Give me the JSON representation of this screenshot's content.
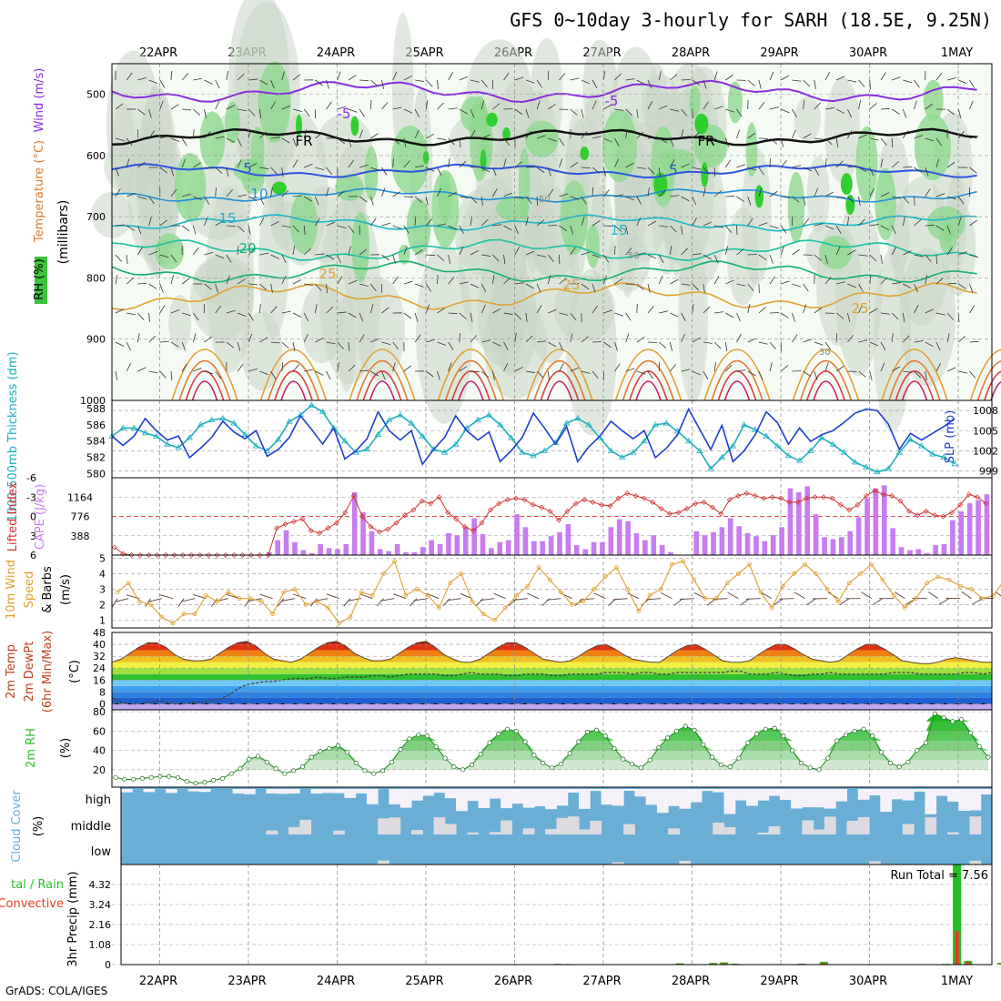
{
  "title": "GFS 0~10day 3-hourly for SARH (18.5E, 9.25N)",
  "credit": "GrADS: COLA/IGES",
  "dates": [
    "22APR",
    "23APR",
    "24APR",
    "25APR",
    "26APR",
    "27APR",
    "28APR",
    "29APR",
    "30APR",
    "1MAY"
  ],
  "colors": {
    "rh_green": "#3cc43c",
    "temp_purple": "#8a2be2",
    "slp_blue": "#1f3fcf",
    "thick_cyan": "#1bb0c0",
    "cape_purple": "#c87cf0",
    "li_red": "#d03030",
    "wind_orange": "#e0a030",
    "rh2m_green": "#2ec02e",
    "cloud_blue": "#6aaed6",
    "cloud_white": "#f4f2f8",
    "precip_green": "#22c022",
    "precip_red": "#e04020"
  },
  "chart_data": [
    {
      "type": "heatmap",
      "name": "upper-air-cross-section",
      "ylabel": "(millibars)",
      "left_labels": [
        "RH (%)",
        "Temperature (°C)",
        "Wind (m/s)"
      ],
      "yticks": [
        500,
        600,
        700,
        800,
        900,
        1000
      ],
      "ylim": [
        450,
        1000
      ],
      "isotherm_labels": [
        "-5",
        "-5",
        "FR",
        "FR",
        "5",
        "5",
        "10",
        "15",
        "15",
        "20",
        "25",
        "25",
        "25"
      ],
      "rh_labels": [
        "50",
        "50",
        "30"
      ]
    },
    {
      "type": "line",
      "name": "slp-thickness",
      "left_label": "1000-500mb Thickness (dm)",
      "right_label": "SLP (mb)",
      "left_ticks": [
        580,
        582,
        584,
        586,
        588
      ],
      "right_ticks": [
        999,
        1002,
        1005,
        1008
      ],
      "series": [
        {
          "name": "SLP (mb)",
          "axis": "right",
          "ylim": [
            998,
            1009.5
          ],
          "values": [
            1004.2,
            1002.8,
            1004.2,
            1006.8,
            1005.0,
            1003.6,
            1004.2,
            1001.0,
            1002.4,
            1004.0,
            1006.4,
            1004.8,
            1003.8,
            1005.0,
            1001.2,
            1002.2,
            1004.0,
            1007.2,
            1005.2,
            1003.0,
            1005.4,
            1000.8,
            1002.0,
            1003.8,
            1007.8,
            1005.0,
            1003.6,
            1005.0,
            1000.0,
            1002.2,
            1004.0,
            1007.2,
            1005.0,
            1003.6,
            1004.8,
            1000.4,
            1002.0,
            1004.0,
            1007.6,
            1005.4,
            1003.0,
            1005.6,
            1000.4,
            1002.6,
            1004.2,
            1006.4,
            1005.0,
            1003.8,
            1005.0,
            1001.0,
            1002.4,
            1004.4,
            1008.2,
            1005.2,
            1002.2,
            1005.8,
            1000.4,
            1002.0,
            1004.4,
            1007.8,
            1006.2,
            1003.0,
            1005.4,
            1003.4,
            1004.4,
            1005.0,
            1006.2,
            1007.6,
            1008.2,
            1008.0,
            1006.0,
            1002.2,
            1004.6,
            1003.6,
            1004.6,
            1005.6,
            1006.8
          ]
        },
        {
          "name": "Thickness (dm)",
          "axis": "left",
          "ylim": [
            579.5,
            589
          ],
          "values": [
            584.6,
            585.6,
            585.6,
            585.0,
            584.6,
            583.6,
            583.2,
            584.4,
            586.0,
            586.6,
            586.8,
            586.2,
            584.8,
            583.4,
            582.8,
            584.2,
            586.4,
            587.2,
            588.4,
            587.6,
            585.6,
            584.0,
            582.6,
            583.0,
            584.8,
            586.6,
            587.2,
            586.2,
            584.6,
            583.0,
            582.6,
            583.6,
            585.6,
            586.6,
            587.2,
            586.0,
            584.4,
            582.6,
            582.2,
            582.8,
            583.8,
            586.2,
            586.8,
            586.0,
            584.4,
            582.8,
            582.0,
            582.6,
            584.0,
            586.0,
            586.2,
            585.2,
            584.0,
            582.8,
            580.6,
            582.0,
            583.4,
            586.0,
            585.4,
            584.6,
            583.4,
            582.2,
            581.6,
            582.8,
            584.4,
            583.6,
            582.6,
            581.4,
            580.8,
            580.2,
            580.6,
            582.6,
            584.2,
            583.4,
            582.4,
            582.0,
            581.2
          ]
        }
      ]
    },
    {
      "type": "bar",
      "name": "cape-lifted-index",
      "left_label": "Lifted Index",
      "right_label": "CAPE (J/kg)",
      "left_ticks": [
        "-6",
        "-3",
        "0",
        "3",
        "6"
      ],
      "right_ticks": [
        "388",
        "776",
        "1164"
      ],
      "series": [
        {
          "name": "CAPE (J/kg)",
          "type": "bar",
          "ylim": [
            0,
            1552
          ],
          "values": [
            0,
            0,
            0,
            0,
            0,
            0,
            0,
            0,
            0,
            0,
            0,
            0,
            0,
            0,
            0,
            0,
            0,
            0,
            60,
            300,
            500,
            260,
            100,
            40,
            220,
            140,
            120,
            220,
            1260,
            860,
            480,
            120,
            80,
            220,
            60,
            60,
            160,
            300,
            220,
            440,
            400,
            560,
            740,
            420,
            140,
            260,
            300,
            820,
            560,
            280,
            280,
            380,
            460,
            620,
            200,
            120,
            260,
            260,
            560,
            720,
            680,
            440,
            300,
            400,
            200,
            60,
            0,
            0,
            480,
            400,
            460,
            560,
            740,
            580,
            440,
            380,
            280,
            400,
            560,
            1340,
            1260,
            1380,
            820,
            360,
            320,
            360,
            480,
            760,
            1140,
            1340,
            1400,
            540,
            160,
            100,
            120,
            40,
            200,
            220,
            700,
            880,
            1040,
            1100,
            1220
          ]
        },
        {
          "name": "Lifted Index",
          "type": "line",
          "ylim": [
            6,
            -6
          ],
          "values": [
            4.8,
            5.8,
            6,
            6,
            6,
            6,
            6,
            6,
            6,
            6,
            6,
            6,
            6,
            6,
            6,
            6,
            6,
            6,
            6,
            1.8,
            1.2,
            0.8,
            0.4,
            2.2,
            2.6,
            1.8,
            1.0,
            -0.6,
            -3.2,
            0.0,
            1.6,
            2.4,
            2.0,
            1.0,
            -0.2,
            -1.0,
            -2.4,
            -2.0,
            -3.0,
            -0.6,
            0.4,
            1.6,
            2.2,
            1.0,
            -1.0,
            -2.0,
            -2.6,
            -2.8,
            -2.6,
            -1.8,
            -1.4,
            -0.8,
            0.6,
            -0.8,
            -2.0,
            -2.6,
            -2.2,
            -1.8,
            -1.6,
            -2.8,
            -3.6,
            -3.2,
            -2.8,
            -2.2,
            -1.2,
            -0.4,
            -0.6,
            -1.2,
            -2.0,
            -2.2,
            -1.4,
            -0.4,
            -2.6,
            -3.2,
            -3.6,
            -3.2,
            -2.8,
            -3.0,
            -2.8,
            -2.2,
            -2.2,
            -2.8,
            -3.0,
            -3.0,
            -2.8,
            -1.8,
            -1.0,
            -1.8,
            -3.2,
            -4.0,
            -3.4,
            -3.2,
            -2.4,
            -0.8,
            -0.2,
            -0.8,
            -0.2,
            0.0,
            -0.6,
            -1.8,
            -3.4,
            -3.0,
            -2.0
          ]
        }
      ]
    },
    {
      "type": "line",
      "name": "wind-10m",
      "left_label": "10m Wind Speed & Barbs (m/s)",
      "yticks": [
        1,
        2,
        3,
        4,
        5
      ],
      "ylim": [
        0.5,
        5.2
      ],
      "series": [
        {
          "name": "10m Wind Speed (m/s)",
          "values": [
            2.8,
            3.4,
            2.2,
            2.0,
            1.2,
            0.8,
            1.4,
            1.4,
            2.6,
            2.2,
            2.8,
            2.4,
            2.4,
            2.2,
            1.4,
            2.8,
            3.0,
            2.0,
            2.2,
            1.8,
            0.8,
            1.2,
            2.8,
            2.6,
            4.0,
            4.8,
            2.6,
            3.0,
            2.6,
            1.8,
            3.4,
            4.0,
            2.2,
            1.4,
            1.0,
            1.8,
            2.6,
            3.2,
            4.4,
            3.6,
            2.8,
            2.0,
            2.2,
            3.0,
            3.8,
            4.4,
            3.0,
            1.6,
            2.6,
            3.0,
            4.6,
            4.8,
            3.6,
            2.4,
            2.4,
            3.4,
            4.0,
            4.6,
            2.8,
            1.8,
            3.2,
            4.0,
            4.6,
            4.0,
            3.0,
            2.2,
            3.4,
            4.0,
            4.6,
            3.6,
            2.6,
            1.8,
            2.4,
            3.4,
            3.8,
            3.6,
            3.2,
            3.0,
            2.4,
            2.6,
            3.6,
            4.2,
            4.4,
            3.0,
            2.4,
            2.0,
            2.2,
            2.8,
            3.4,
            4.2,
            4.6,
            4.0,
            3.6,
            2.6,
            2.0,
            1.2,
            1.0,
            1.8,
            2.4,
            2.2,
            2.4
          ]
        }
      ]
    },
    {
      "type": "area",
      "name": "temperature-2m",
      "left_label": "2m Temp 2m DewPt (6hr Min/Max) (°C)",
      "yticks": [
        0,
        8,
        16,
        24,
        32,
        40,
        48
      ],
      "ylim": [
        -4,
        48
      ],
      "series": [
        {
          "name": "2m Temp (°C)",
          "values": [
            28,
            30,
            34,
            38,
            41,
            41,
            38,
            33,
            30,
            29,
            29,
            30,
            34,
            38,
            41,
            42,
            39,
            34,
            30,
            29,
            28,
            30,
            34,
            38,
            41,
            42,
            39,
            34,
            31,
            29,
            29,
            30,
            34,
            38,
            41,
            42,
            38,
            33,
            30,
            28,
            28,
            30,
            34,
            38,
            41,
            41,
            38,
            34,
            30,
            29,
            28,
            29,
            32,
            36,
            39,
            40,
            37,
            33,
            30,
            29,
            28,
            28,
            32,
            36,
            39,
            40,
            37,
            33,
            29,
            28,
            28,
            29,
            33,
            37,
            40,
            40,
            37,
            33,
            30,
            29,
            28,
            29,
            33,
            37,
            40,
            40,
            37,
            33,
            29,
            28,
            27,
            27,
            28,
            30,
            31,
            30,
            29,
            28,
            28
          ]
        },
        {
          "name": "2m DewPt (°C)",
          "values": [
            4,
            1,
            0,
            0,
            1,
            2,
            1,
            0,
            0,
            1,
            1,
            2,
            3,
            6,
            10,
            13,
            14,
            15,
            15,
            16,
            17,
            17,
            17,
            18,
            17,
            17,
            18,
            18,
            18,
            19,
            19,
            18,
            19,
            20,
            20,
            20,
            20,
            19,
            19,
            20,
            21,
            20,
            20,
            20,
            19,
            19,
            20,
            20,
            20,
            19,
            19,
            20,
            20,
            20,
            20,
            21,
            21,
            21,
            20,
            21,
            21,
            20,
            20,
            21,
            21,
            21,
            21,
            21,
            21,
            22,
            22,
            20,
            20,
            20,
            21,
            20,
            19,
            19,
            20,
            20,
            21,
            20,
            20,
            20,
            20,
            20,
            20,
            21,
            21,
            21,
            20,
            20,
            20,
            20,
            20,
            21,
            21,
            20,
            21
          ]
        }
      ]
    },
    {
      "type": "area",
      "name": "rh-2m",
      "left_label": "2m RH (%)",
      "yticks": [
        20,
        40,
        60,
        80
      ],
      "ylim": [
        2,
        82
      ],
      "series": [
        {
          "name": "2m RH (%)",
          "values": [
            12,
            10,
            10,
            11,
            12,
            13,
            13,
            12,
            8,
            6,
            7,
            9,
            11,
            16,
            21,
            31,
            34,
            28,
            21,
            16,
            19,
            23,
            33,
            39,
            42,
            45,
            38,
            27,
            19,
            16,
            19,
            28,
            41,
            52,
            56,
            55,
            44,
            32,
            23,
            20,
            25,
            36,
            48,
            57,
            62,
            60,
            49,
            35,
            27,
            22,
            26,
            37,
            49,
            59,
            61,
            55,
            42,
            31,
            26,
            22,
            30,
            43,
            53,
            60,
            65,
            61,
            46,
            33,
            25,
            23,
            32,
            48,
            57,
            62,
            63,
            55,
            40,
            27,
            22,
            20,
            32,
            50,
            56,
            60,
            62,
            55,
            38,
            27,
            23,
            28,
            40,
            48,
            78,
            74,
            70,
            72,
            58,
            44,
            33
          ]
        }
      ]
    },
    {
      "type": "bar",
      "name": "cloud-cover",
      "left_label": "Cloud Cover (%)",
      "levels": [
        "high",
        "middle",
        "low"
      ]
    },
    {
      "type": "bar",
      "name": "precip-3hr",
      "left_label": "Total / Rain Convective",
      "ylabel": "3hr Precip (mm)",
      "yticks": [
        0,
        1.08,
        2.16,
        3.24,
        4.32
      ],
      "ylim": [
        0,
        5.4
      ],
      "run_total": "Run Total = 7.56",
      "bars": [
        {
          "idx": 39,
          "total": 0.04,
          "conv": 0.03
        },
        {
          "idx": 40,
          "total": 0.03,
          "conv": 0.02
        },
        {
          "idx": 50,
          "total": 0.07,
          "conv": 0.05
        },
        {
          "idx": 51,
          "total": 0.03,
          "conv": 0.02
        },
        {
          "idx": 53,
          "total": 0.09,
          "conv": 0.06
        },
        {
          "idx": 54,
          "total": 0.12,
          "conv": 0.1
        },
        {
          "idx": 55,
          "total": 0.05,
          "conv": 0.03
        },
        {
          "idx": 59,
          "total": 0.03,
          "conv": 0.02
        },
        {
          "idx": 61,
          "total": 0.05,
          "conv": 0.03
        },
        {
          "idx": 63,
          "total": 0.15,
          "conv": 0.1
        },
        {
          "idx": 74,
          "total": 0.04,
          "conv": 0.02
        },
        {
          "idx": 75,
          "total": 5.4,
          "conv": 1.8
        },
        {
          "idx": 76,
          "total": 0.2,
          "conv": 0.15
        },
        {
          "idx": 77,
          "total": 0.02,
          "conv": 0.01
        },
        {
          "idx": 79,
          "total": 0.1,
          "conv": 0.05
        },
        {
          "idx": 80,
          "total": 0.08,
          "conv": 0.05
        },
        {
          "idx": 84,
          "total": 0.13,
          "conv": 0.09
        },
        {
          "idx": 85,
          "total": 0.08,
          "conv": 0.05
        },
        {
          "idx": 86,
          "total": 0.06,
          "conv": 0.04
        },
        {
          "idx": 87,
          "total": 0.12,
          "conv": 0.08
        }
      ]
    }
  ]
}
